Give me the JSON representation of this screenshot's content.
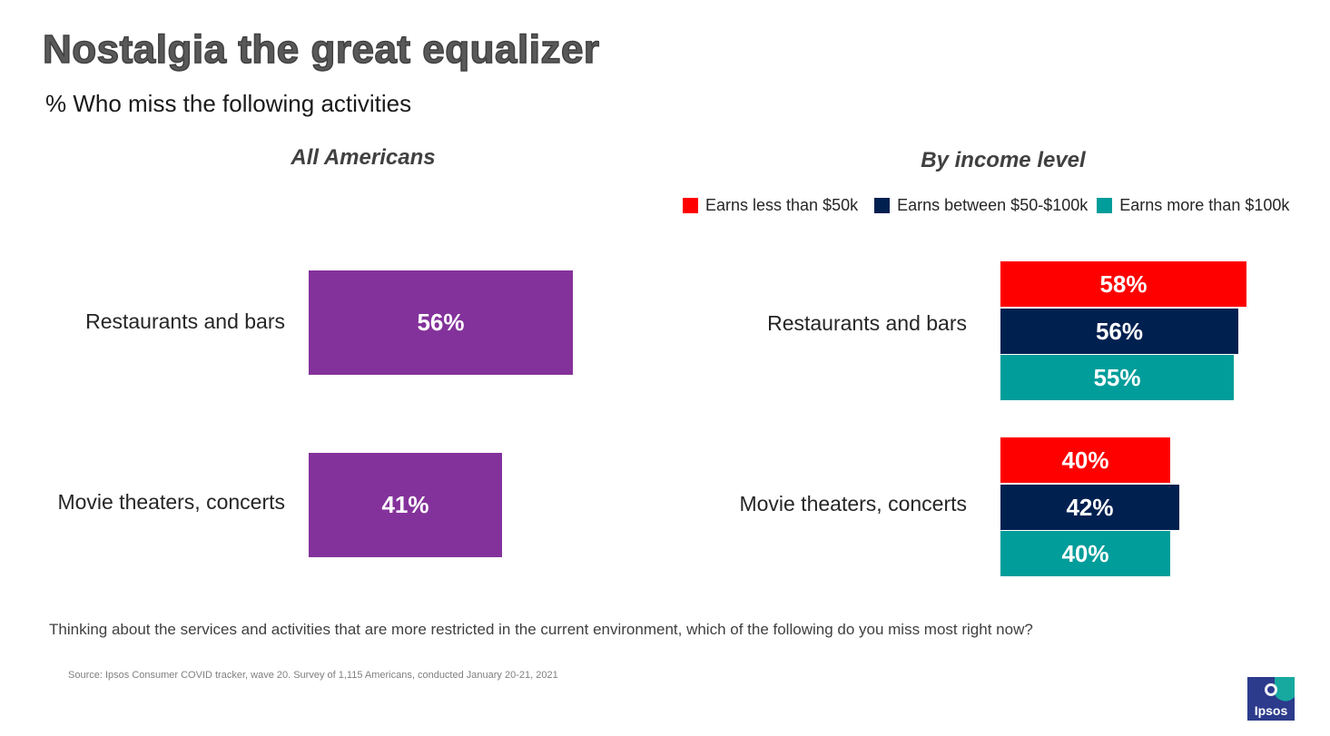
{
  "title": "Nostalgia the great equalizer",
  "subtitle": "% Who miss the following activities",
  "question": "Thinking about the services and activities that are more restricted in the current environment, which of the following do you miss most right now?",
  "source": "Source: Ipsos Consumer COVID tracker, wave 20. Survey of 1,115 Americans, conducted January 20-21, 2021",
  "logo_text": "Ipsos",
  "colors": {
    "all_americans": "#84329b",
    "less_50k": "#ff0000",
    "between_50_100k": "#002050",
    "more_100k": "#009d9a"
  },
  "chart_data": [
    {
      "type": "bar",
      "orientation": "horizontal",
      "title": "All Americans",
      "categories": [
        "Restaurants and bars",
        "Movie theaters, concerts"
      ],
      "values": [
        56,
        41
      ],
      "value_labels": [
        "56%",
        "41%"
      ],
      "unit": "%",
      "xlim": [
        0,
        100
      ]
    },
    {
      "type": "bar",
      "orientation": "horizontal",
      "title": "By income level",
      "categories": [
        "Restaurants and bars",
        "Movie theaters, concerts"
      ],
      "legend_position": "top-right",
      "unit": "%",
      "xlim": [
        0,
        100
      ],
      "series": [
        {
          "name": "Earns less than $50k",
          "values": [
            58,
            40
          ],
          "labels": [
            "58%",
            "40%"
          ],
          "color": "#ff0000"
        },
        {
          "name": "Earns between $50-$100k",
          "values": [
            56,
            42
          ],
          "labels": [
            "56%",
            "42%"
          ],
          "color": "#002050"
        },
        {
          "name": "Earns more than $100k",
          "values": [
            55,
            40
          ],
          "labels": [
            "55%",
            "40%"
          ],
          "color": "#009d9a"
        }
      ]
    }
  ]
}
